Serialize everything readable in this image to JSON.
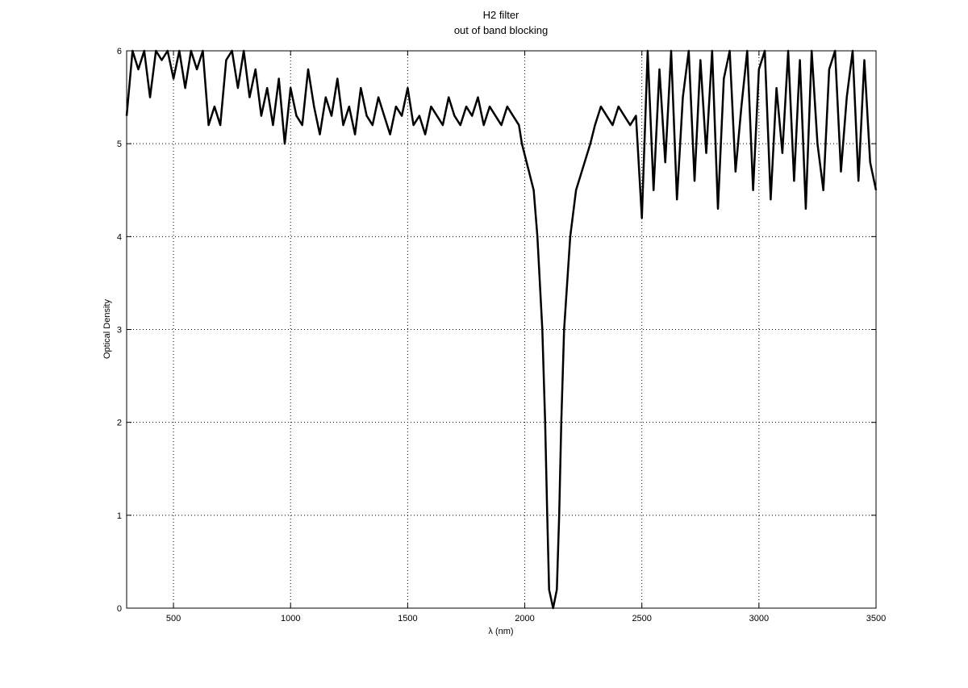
{
  "chart_data": {
    "type": "line",
    "title": [
      "H2 filter",
      "out of band blocking"
    ],
    "xlabel": "λ (nm)",
    "ylabel": "Optical Density",
    "xlim": [
      300,
      3500
    ],
    "ylim": [
      0,
      6
    ],
    "xticks": [
      500,
      1000,
      1500,
      2000,
      2500,
      3000,
      3500
    ],
    "yticks": [
      0,
      1,
      2,
      3,
      4,
      5,
      6
    ],
    "grid": true,
    "line_color": "#000000",
    "series": [
      {
        "points": [
          [
            300,
            5.3
          ],
          [
            325,
            6
          ],
          [
            350,
            5.8
          ],
          [
            375,
            6
          ],
          [
            400,
            5.5
          ],
          [
            425,
            6
          ],
          [
            450,
            5.9
          ],
          [
            475,
            6
          ],
          [
            500,
            5.7
          ],
          [
            525,
            6
          ],
          [
            550,
            5.6
          ],
          [
            575,
            6
          ],
          [
            600,
            5.8
          ],
          [
            625,
            6
          ],
          [
            650,
            5.2
          ],
          [
            675,
            5.4
          ],
          [
            700,
            5.2
          ],
          [
            725,
            5.9
          ],
          [
            750,
            6
          ],
          [
            775,
            5.6
          ],
          [
            800,
            6
          ],
          [
            825,
            5.5
          ],
          [
            850,
            5.8
          ],
          [
            875,
            5.3
          ],
          [
            900,
            5.6
          ],
          [
            925,
            5.2
          ],
          [
            950,
            5.7
          ],
          [
            975,
            5.0
          ],
          [
            1000,
            5.6
          ],
          [
            1025,
            5.3
          ],
          [
            1050,
            5.2
          ],
          [
            1075,
            5.8
          ],
          [
            1100,
            5.4
          ],
          [
            1125,
            5.1
          ],
          [
            1150,
            5.5
          ],
          [
            1175,
            5.3
          ],
          [
            1200,
            5.7
          ],
          [
            1225,
            5.2
          ],
          [
            1250,
            5.4
          ],
          [
            1275,
            5.1
          ],
          [
            1300,
            5.6
          ],
          [
            1325,
            5.3
          ],
          [
            1350,
            5.2
          ],
          [
            1375,
            5.5
          ],
          [
            1400,
            5.3
          ],
          [
            1425,
            5.1
          ],
          [
            1450,
            5.4
          ],
          [
            1475,
            5.3
          ],
          [
            1500,
            5.6
          ],
          [
            1525,
            5.2
          ],
          [
            1550,
            5.3
          ],
          [
            1575,
            5.1
          ],
          [
            1600,
            5.4
          ],
          [
            1625,
            5.3
          ],
          [
            1650,
            5.2
          ],
          [
            1675,
            5.5
          ],
          [
            1700,
            5.3
          ],
          [
            1725,
            5.2
          ],
          [
            1750,
            5.4
          ],
          [
            1775,
            5.3
          ],
          [
            1800,
            5.5
          ],
          [
            1825,
            5.2
          ],
          [
            1850,
            5.4
          ],
          [
            1875,
            5.3
          ],
          [
            1900,
            5.2
          ],
          [
            1925,
            5.4
          ],
          [
            1950,
            5.3
          ],
          [
            1975,
            5.2
          ],
          [
            1988,
            5.0
          ],
          [
            2038,
            4.5
          ],
          [
            2054,
            4.0
          ],
          [
            2075,
            3.0
          ],
          [
            2087,
            2.0
          ],
          [
            2096,
            1.0
          ],
          [
            2104,
            0.2
          ],
          [
            2121,
            0.0
          ],
          [
            2137,
            0.2
          ],
          [
            2147,
            1.0
          ],
          [
            2156,
            2.0
          ],
          [
            2168,
            3.0
          ],
          [
            2194,
            4.0
          ],
          [
            2219,
            4.5
          ],
          [
            2280,
            5.0
          ],
          [
            2300,
            5.2
          ],
          [
            2325,
            5.4
          ],
          [
            2350,
            5.3
          ],
          [
            2375,
            5.2
          ],
          [
            2400,
            5.4
          ],
          [
            2425,
            5.3
          ],
          [
            2450,
            5.2
          ],
          [
            2475,
            5.3
          ],
          [
            2500,
            4.2
          ],
          [
            2525,
            6
          ],
          [
            2550,
            4.5
          ],
          [
            2575,
            5.8
          ],
          [
            2600,
            4.8
          ],
          [
            2625,
            6
          ],
          [
            2650,
            4.4
          ],
          [
            2675,
            5.5
          ],
          [
            2700,
            6
          ],
          [
            2725,
            4.6
          ],
          [
            2750,
            5.9
          ],
          [
            2775,
            4.9
          ],
          [
            2800,
            6
          ],
          [
            2825,
            4.3
          ],
          [
            2850,
            5.7
          ],
          [
            2875,
            6
          ],
          [
            2900,
            4.7
          ],
          [
            2925,
            5.4
          ],
          [
            2950,
            6
          ],
          [
            2975,
            4.5
          ],
          [
            3000,
            5.8
          ],
          [
            3025,
            6
          ],
          [
            3050,
            4.4
          ],
          [
            3075,
            5.6
          ],
          [
            3100,
            4.9
          ],
          [
            3125,
            6
          ],
          [
            3150,
            4.6
          ],
          [
            3175,
            5.9
          ],
          [
            3200,
            4.3
          ],
          [
            3225,
            6
          ],
          [
            3250,
            5.0
          ],
          [
            3275,
            4.5
          ],
          [
            3300,
            5.8
          ],
          [
            3325,
            6
          ],
          [
            3350,
            4.7
          ],
          [
            3375,
            5.5
          ],
          [
            3400,
            6
          ],
          [
            3425,
            4.6
          ],
          [
            3450,
            5.9
          ],
          [
            3475,
            4.8
          ],
          [
            3500,
            4.5
          ]
        ]
      }
    ]
  }
}
